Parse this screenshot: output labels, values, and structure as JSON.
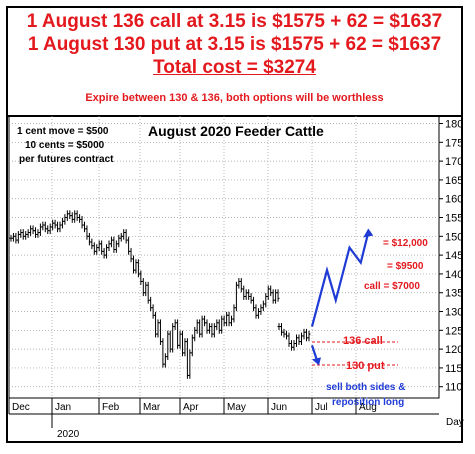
{
  "header": {
    "line1": "1 August 136 call at 3.15 is $1575 + 62 = $1637",
    "line2": "1 August 130 put at 3.15 is $1575 + 62 = $1637",
    "line3": "Total cost = $3274",
    "line4": "Expire between 130 & 136, both options will be worthless"
  },
  "chart_data": {
    "type": "ohlc",
    "title": "August 2020 Feeder Cattle",
    "xlabel": "Day",
    "ylim": [
      107,
      182
    ],
    "yticks": [
      110,
      115,
      120,
      125,
      130,
      135,
      140,
      145,
      150,
      155,
      160,
      165,
      170,
      175,
      180
    ],
    "month_labels": [
      "Dec",
      "Jan",
      "Feb",
      "Mar",
      "Apr",
      "May",
      "Jun",
      "Jul",
      "Aug"
    ],
    "year_label": "2020",
    "contract_note": [
      "1 cent move = $500",
      "10 cents = $5000",
      "per futures contract"
    ],
    "series": [
      {
        "name": "price",
        "closes": [
          149.5,
          150.0,
          149.0,
          150.5,
          151.0,
          150.0,
          150.5,
          151.0,
          152.0,
          151.5,
          150.5,
          151.0,
          152.5,
          153.0,
          152.0,
          151.5,
          152.5,
          153.5,
          153.0,
          152.0,
          153.0,
          154.0,
          155.0,
          156.0,
          155.5,
          154.5,
          156.0,
          155.0,
          154.5,
          153.0,
          152.0,
          150.0,
          148.5,
          147.5,
          146.0,
          147.0,
          148.0,
          146.0,
          145.0,
          147.0,
          148.0,
          149.0,
          146.5,
          148.0,
          149.5,
          150.0,
          151.0,
          149.0,
          146.0,
          144.0,
          141.0,
          143.0,
          140.0,
          138.0,
          135.0,
          137.0,
          133.0,
          131.0,
          129.0,
          124.0,
          127.0,
          122.0,
          116.0,
          118.0,
          124.0,
          120.0,
          126.0,
          127.0,
          121.0,
          124.0,
          119.0,
          122.0,
          113.0,
          119.0,
          123.0,
          125.0,
          127.0,
          124.0,
          128.0,
          127.0,
          125.0,
          126.0,
          124.0,
          126.0,
          127.0,
          125.0,
          128.0,
          127.0,
          129.0,
          127.0,
          128.0,
          131.0,
          137.0,
          138.0,
          136.0,
          134.0,
          135.0,
          134.0,
          133.0,
          131.0,
          129.0,
          130.0,
          131.0,
          132.0,
          134.0,
          136.0,
          135.0,
          133.0,
          135.0,
          133.5
        ],
        "gap_after_index": 110,
        "closes_recent": [
          126.0,
          124.5,
          124.0,
          123.5,
          121.5,
          120.5,
          121.5,
          123.0,
          122.0,
          123.5,
          124.5,
          123.0,
          124.0
        ]
      }
    ],
    "projection_up": [
      [
        126,
        126
      ],
      [
        138,
        141
      ],
      [
        145,
        133
      ],
      [
        156,
        147
      ],
      [
        165,
        143
      ],
      [
        171,
        151
      ]
    ],
    "projection_down": [
      [
        126,
        121
      ],
      [
        130,
        117
      ]
    ],
    "annotations": {
      "call_label": "136 call",
      "put_label": "130 put",
      "target1": "= $12,000",
      "target2": "= $9500",
      "target3": "call = $7000",
      "sell_note_1": "sell both sides &",
      "sell_note_2": "reposition long"
    },
    "strikes": {
      "call": 136,
      "put": 130
    },
    "grid": true
  }
}
